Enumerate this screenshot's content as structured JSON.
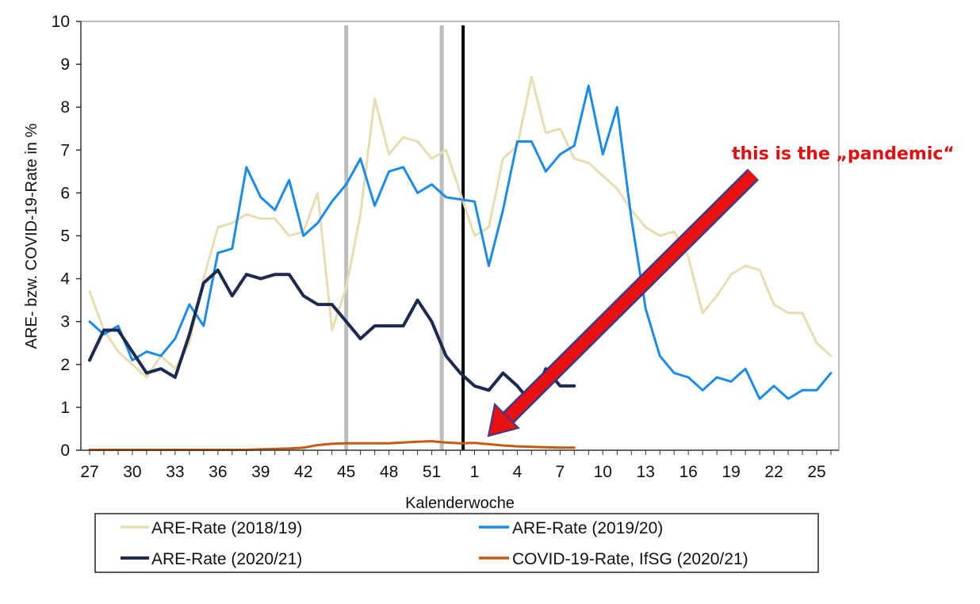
{
  "chart_data": {
    "type": "line",
    "title": "",
    "xlabel": "Kalenderwoche",
    "ylabel": "ARE- bzw. COVID-19-Rate in %",
    "ylim": [
      0,
      10
    ],
    "yticks": [
      "0",
      "1",
      "2",
      "3",
      "4",
      "5",
      "6",
      "7",
      "8",
      "9",
      "10"
    ],
    "xtick_labels": [
      "27",
      "30",
      "33",
      "36",
      "39",
      "42",
      "45",
      "48",
      "51",
      "1",
      "4",
      "7",
      "10",
      "13",
      "16",
      "19",
      "22",
      "25"
    ],
    "x_categories": [
      27,
      28,
      29,
      30,
      31,
      32,
      33,
      34,
      35,
      36,
      37,
      38,
      39,
      40,
      41,
      42,
      43,
      44,
      45,
      46,
      47,
      48,
      49,
      50,
      51,
      52,
      53,
      1,
      2,
      3,
      4,
      5,
      6,
      7,
      8,
      9,
      10,
      11,
      12,
      13,
      14,
      15,
      16,
      17,
      18,
      19,
      20,
      21,
      22,
      23,
      24,
      25,
      26
    ],
    "grid": false,
    "vertical_markers": [
      {
        "week_index": 18,
        "color": "#bdbdbd"
      },
      {
        "week_index": 24.7,
        "color": "#bdbdbd"
      },
      {
        "week_index": 26.2,
        "color": "#000000"
      }
    ],
    "series": [
      {
        "name": "ARE-Rate (2018/19)",
        "color": "#e8ddb0",
        "width": 3,
        "values": [
          3.7,
          2.8,
          2.3,
          2.0,
          1.7,
          2.2,
          1.9,
          2.5,
          4.0,
          5.2,
          5.3,
          5.5,
          5.4,
          5.4,
          5.0,
          5.1,
          6.0,
          2.8,
          3.8,
          5.5,
          8.2,
          6.9,
          7.3,
          7.2,
          6.8,
          7.0,
          6.0,
          5.0,
          5.2,
          6.8,
          7.1,
          8.7,
          7.4,
          7.5,
          6.8,
          6.7,
          6.4,
          6.1,
          5.6,
          5.2,
          5.0,
          5.1,
          4.5,
          3.2,
          3.6,
          4.1,
          4.3,
          4.2,
          3.4,
          3.2,
          3.2,
          2.5,
          2.2
        ]
      },
      {
        "name": "ARE-Rate (2019/20)",
        "color": "#1a8ce8",
        "width": 3,
        "values": [
          3.0,
          2.7,
          2.9,
          2.1,
          2.3,
          2.2,
          2.6,
          3.4,
          2.9,
          4.6,
          4.7,
          6.6,
          5.9,
          5.6,
          6.3,
          5.0,
          5.3,
          5.8,
          6.2,
          6.8,
          5.7,
          6.5,
          6.6,
          6.0,
          6.2,
          5.9,
          5.85,
          5.8,
          4.3,
          5.6,
          7.2,
          7.2,
          6.5,
          6.9,
          7.1,
          8.5,
          6.9,
          8.0,
          5.4,
          3.3,
          2.2,
          1.8,
          1.7,
          1.4,
          1.7,
          1.6,
          1.9,
          1.2,
          1.5,
          1.2,
          1.4,
          1.4,
          1.8
        ]
      },
      {
        "name": "ARE-Rate (2020/21)",
        "color": "#1b2a4e",
        "width": 4,
        "values": [
          2.1,
          2.8,
          2.8,
          2.3,
          1.8,
          1.9,
          1.7,
          2.7,
          3.9,
          4.2,
          3.6,
          4.1,
          4.0,
          4.1,
          4.1,
          3.6,
          3.4,
          3.4,
          3.0,
          2.6,
          2.9,
          2.9,
          2.9,
          3.5,
          3.0,
          2.2,
          1.8,
          1.5,
          1.4,
          1.8,
          1.5,
          1.1,
          1.9,
          1.5,
          1.5
        ]
      },
      {
        "name": "COVID-19-Rate, IfSG (2020/21)",
        "color": "#c55a11",
        "width": 3,
        "values": [
          0.01,
          0.01,
          0.01,
          0.01,
          0.01,
          0.01,
          0.01,
          0.01,
          0.01,
          0.01,
          0.01,
          0.01,
          0.02,
          0.03,
          0.04,
          0.06,
          0.12,
          0.15,
          0.16,
          0.16,
          0.16,
          0.16,
          0.18,
          0.2,
          0.21,
          0.18,
          0.16,
          0.17,
          0.14,
          0.11,
          0.09,
          0.08,
          0.07,
          0.06,
          0.06
        ]
      }
    ],
    "legend": {
      "position": "bottom",
      "entries": [
        "ARE-Rate (2018/19)",
        "ARE-Rate (2019/20)",
        "ARE-Rate (2020/21)",
        "COVID-19-Rate, IfSG (2020/21)"
      ]
    },
    "annotation": {
      "text": "this is the „pandemic“",
      "arrow_color": "#e81010"
    }
  }
}
